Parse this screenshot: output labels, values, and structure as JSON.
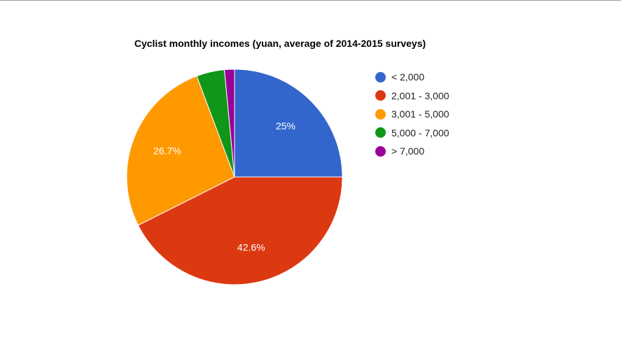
{
  "chart_data": {
    "type": "pie",
    "title": "Cyclist monthly incomes (yuan, average of 2014-2015 surveys)",
    "categories": [
      "< 2,000",
      "2,001 - 3,000",
      "3,001 - 5,000",
      "5,000 - 7,000",
      "> 7,000"
    ],
    "values": [
      25.0,
      42.6,
      26.7,
      4.2,
      1.5
    ],
    "data_labels": [
      "25%",
      "42.6%",
      "26.7%",
      "",
      ""
    ],
    "colors": [
      "#3366cc",
      "#dc3912",
      "#ff9900",
      "#109618",
      "#990099"
    ],
    "legend": "right",
    "start_angle_deg": 0,
    "direction": "clockwise"
  }
}
